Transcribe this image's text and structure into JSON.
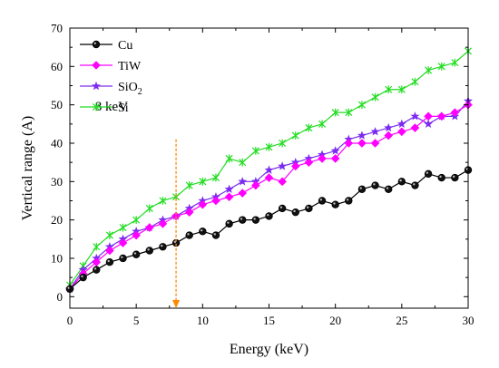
{
  "chart_data": {
    "type": "line",
    "xlabel": "Energy (keV)",
    "ylabel": "Vertical range (A)",
    "xlim": [
      0,
      30
    ],
    "ylim": [
      -3,
      70
    ],
    "xticks": [
      0,
      5,
      10,
      15,
      20,
      25,
      30
    ],
    "yticks": [
      0,
      10,
      20,
      30,
      40,
      50,
      60,
      70
    ],
    "x": [
      0,
      1,
      2,
      3,
      4,
      5,
      6,
      7,
      8,
      9,
      10,
      11,
      12,
      13,
      14,
      15,
      16,
      17,
      18,
      19,
      20,
      21,
      22,
      23,
      24,
      25,
      26,
      27,
      28,
      29,
      30
    ],
    "legend_position": "top-left",
    "series": [
      {
        "label_parts": [
          "Cu"
        ],
        "color": "#000000",
        "marker": "circle",
        "values": [
          2,
          5,
          7,
          9,
          10,
          11,
          12,
          13,
          14,
          16,
          17,
          16,
          19,
          20,
          20,
          21,
          23,
          22,
          23,
          25,
          24,
          25,
          28,
          29,
          28,
          30,
          29,
          32,
          31,
          31,
          33
        ]
      },
      {
        "label_parts": [
          "TiW"
        ],
        "color": "#ff00ff",
        "marker": "diamond",
        "values": [
          2,
          6,
          9,
          12,
          14,
          16,
          18,
          19,
          21,
          22,
          24,
          25,
          26,
          27,
          29,
          31,
          30,
          34,
          35,
          36,
          36,
          40,
          40,
          40,
          42,
          43,
          44,
          47,
          47,
          48,
          50
        ]
      },
      {
        "label_parts": [
          "SiO",
          "2"
        ],
        "color": "#7b2cf0",
        "marker": "star",
        "values": [
          2,
          7,
          10,
          13,
          15,
          17,
          18,
          20,
          21,
          23,
          25,
          26,
          28,
          30,
          30,
          33,
          34,
          35,
          36,
          37,
          38,
          41,
          42,
          43,
          44,
          45,
          47,
          45,
          47,
          47,
          51
        ]
      },
      {
        "label_parts": [
          "Si"
        ],
        "color": "#22dd22",
        "marker": "cross",
        "values": [
          3,
          8,
          13,
          16,
          18,
          20,
          23,
          25,
          26,
          29,
          30,
          31,
          36,
          35,
          38,
          39,
          40,
          42,
          44,
          45,
          48,
          48,
          50,
          52,
          54,
          54,
          56,
          59,
          60,
          61,
          64
        ]
      }
    ],
    "annotation": {
      "text": "8 keV",
      "arrow_x": 8,
      "arrow_from_y": 41,
      "arrow_to_y": -3,
      "arrow_color": "#ff8800"
    }
  }
}
